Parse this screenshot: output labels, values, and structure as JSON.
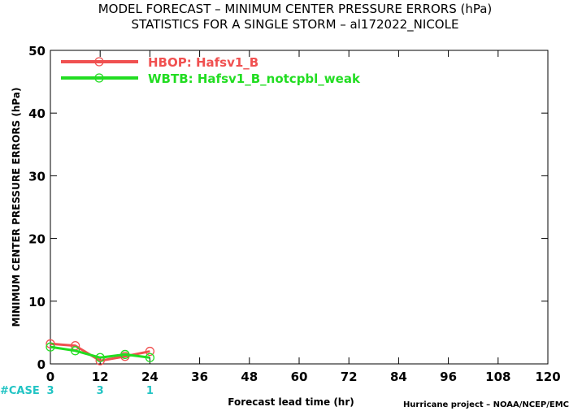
{
  "colors": {
    "hbop": "#f05050",
    "wbtb": "#22dd22",
    "case": "#22c4c4",
    "axis": "#000000"
  },
  "chart_data": {
    "type": "line",
    "title": "MODEL FORECAST – MINIMUM CENTER PRESSURE ERRORS (hPa)",
    "subtitle": "STATISTICS FOR A SINGLE STORM – al172022_NICOLE",
    "xlabel": "Forecast lead time (hr)",
    "ylabel": "MINIMUM CENTER PRESSURE ERRORS (hPa)",
    "xlim": [
      0,
      120
    ],
    "ylim": [
      0,
      50
    ],
    "xticks": [
      0,
      12,
      24,
      36,
      48,
      60,
      72,
      84,
      96,
      108,
      120
    ],
    "yticks": [
      0,
      10,
      20,
      30,
      40,
      50
    ],
    "grid": false,
    "legend_position": "top-left",
    "series": [
      {
        "name": "HBOP: Hafsv1_B",
        "color": "#f05050",
        "x": [
          0,
          6,
          12,
          18,
          24
        ],
        "y": [
          3.2,
          2.9,
          0.5,
          1.2,
          2.0
        ]
      },
      {
        "name": "WBTB: Hafsv1_B_notcpbl_weak",
        "color": "#22dd22",
        "x": [
          0,
          6,
          12,
          18,
          24
        ],
        "y": [
          2.7,
          2.1,
          1.0,
          1.5,
          1.0
        ]
      }
    ],
    "case_label": "#CASE",
    "cases": [
      {
        "x": 0,
        "n": "3"
      },
      {
        "x": 12,
        "n": "3"
      },
      {
        "x": 24,
        "n": "1"
      }
    ],
    "credit": "Hurricane project – NOAA/NCEP/EMC"
  }
}
